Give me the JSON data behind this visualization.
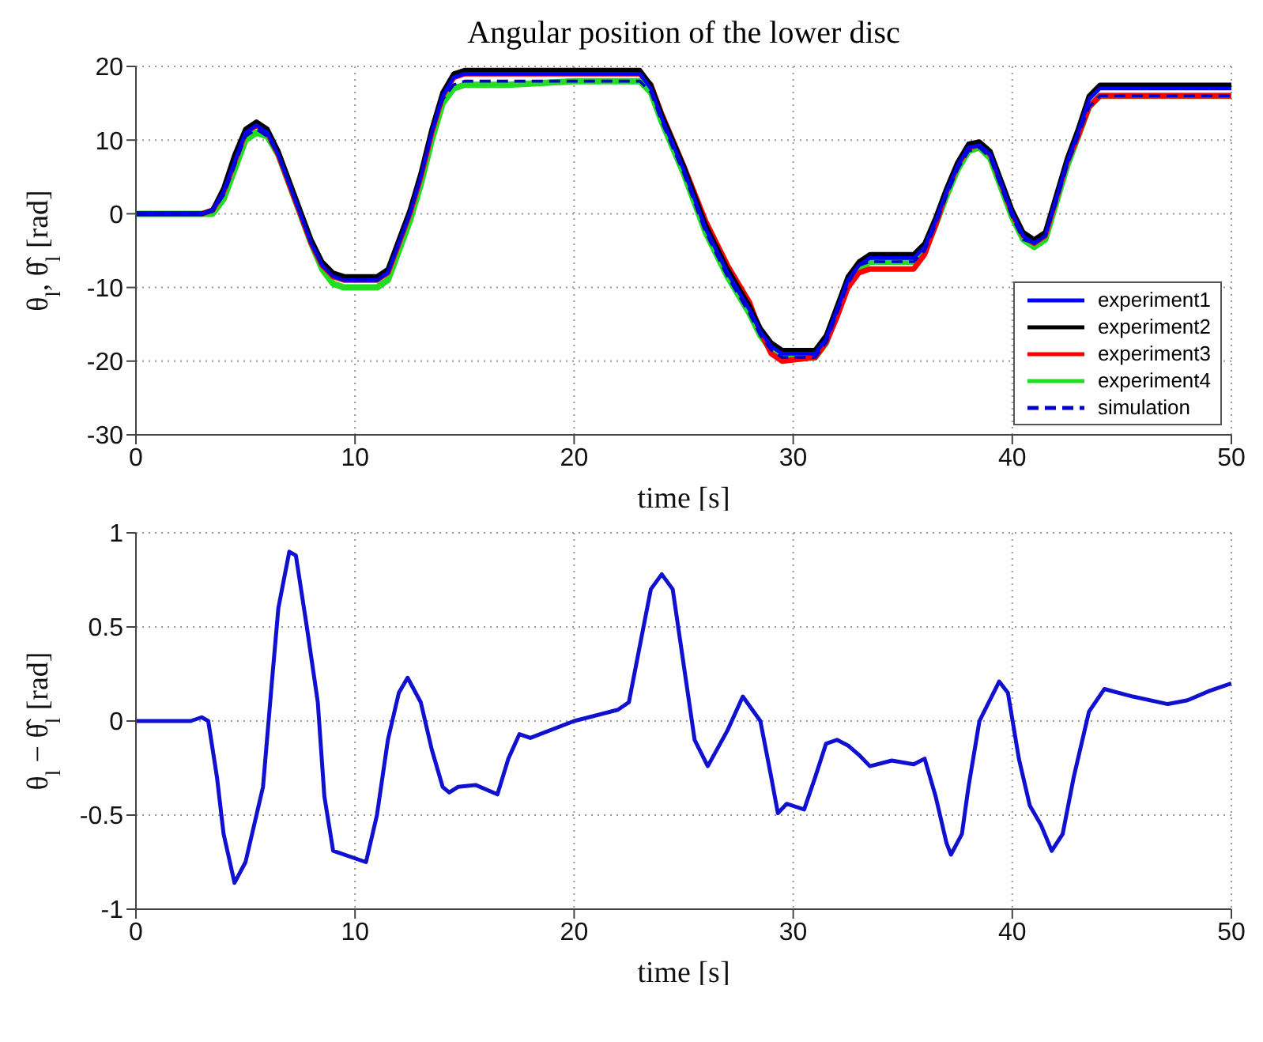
{
  "chart_data": [
    {
      "type": "line",
      "title": "Angular position of the lower disc",
      "xlabel": "time [s]",
      "ylabel": "θ$_{l}$, θ̂$_{l}$ [rad]",
      "x": [
        0,
        3,
        3.5,
        4,
        4.5,
        5,
        5.5,
        6,
        6.5,
        7,
        7.5,
        8,
        8.5,
        9,
        9.5,
        10,
        11,
        11.5,
        12,
        12.5,
        13,
        13.5,
        14,
        14.5,
        15,
        17,
        20,
        23,
        23.5,
        24,
        24.5,
        25,
        26,
        27,
        28,
        28.5,
        29,
        29.5,
        31,
        31.5,
        32,
        32.5,
        33,
        33.5,
        35.5,
        36,
        36.5,
        37,
        37.5,
        38,
        38.5,
        39,
        39.5,
        40,
        40.5,
        41,
        41.5,
        42,
        42.5,
        43,
        43.5,
        44,
        50
      ],
      "series": [
        {
          "name": "experiment1",
          "color": "#0000ff",
          "values": [
            0,
            0,
            0.5,
            3,
            7,
            11,
            12,
            11,
            8,
            4,
            0,
            -4,
            -7,
            -8.5,
            -9,
            -9,
            -9,
            -8,
            -4,
            0,
            5,
            11,
            16,
            18.5,
            19,
            19,
            19,
            19,
            17,
            13,
            9.5,
            6,
            -2,
            -8,
            -13,
            -16,
            -18,
            -19,
            -19,
            -17,
            -13,
            -9,
            -7,
            -6,
            -6,
            -4.5,
            -1,
            3,
            6.5,
            9,
            9.3,
            8,
            4,
            0,
            -3,
            -4,
            -3,
            2,
            7,
            11,
            15.5,
            17,
            17
          ]
        },
        {
          "name": "experiment2",
          "color": "#000000",
          "values": [
            0,
            0,
            0.5,
            3.5,
            8,
            11.5,
            12.5,
            11.5,
            8.5,
            4.5,
            0.5,
            -3.5,
            -6.5,
            -8,
            -8.5,
            -8.5,
            -8.5,
            -7.5,
            -3.5,
            0.5,
            5.5,
            11.5,
            16.5,
            19,
            19.5,
            19.5,
            19.5,
            19.5,
            17.5,
            13.5,
            10,
            6.5,
            -1.5,
            -7.5,
            -12.5,
            -15.5,
            -17.5,
            -18.5,
            -18.5,
            -16.5,
            -12.5,
            -8.5,
            -6.5,
            -5.5,
            -5.5,
            -4,
            -0.5,
            3.5,
            7,
            9.5,
            9.8,
            8.5,
            4.5,
            0.5,
            -2.5,
            -3.5,
            -2.5,
            2.5,
            7.5,
            11.5,
            16,
            17.5,
            17.5
          ]
        },
        {
          "name": "experiment3",
          "color": "#ff0000",
          "values": [
            0,
            0,
            0.5,
            3,
            7,
            11,
            12,
            11,
            8,
            4,
            0,
            -4,
            -7,
            -8.5,
            -9,
            -9,
            -9,
            -8,
            -4,
            0,
            5,
            11,
            16,
            18.5,
            19,
            19,
            19,
            19,
            17.5,
            13.5,
            10,
            6.5,
            -1,
            -7,
            -12,
            -16,
            -19,
            -20,
            -19.5,
            -17.5,
            -14,
            -10,
            -8,
            -7.5,
            -7.5,
            -5.5,
            -1.5,
            3,
            6.5,
            9,
            9.3,
            8,
            4,
            0,
            -3,
            -4,
            -3,
            2,
            7,
            10.5,
            14.5,
            16,
            16
          ]
        },
        {
          "name": "experiment4",
          "color": "#22dd22",
          "values": [
            0,
            0,
            0,
            2,
            6,
            10,
            11,
            10.5,
            8,
            4,
            0,
            -4,
            -7.5,
            -9.5,
            -10,
            -10,
            -10,
            -9,
            -5,
            -1,
            4,
            10,
            15,
            17,
            17.5,
            17.5,
            18,
            18,
            16.5,
            12.5,
            9,
            5.5,
            -2.5,
            -8.5,
            -13.5,
            -16.5,
            -18.5,
            -19.5,
            -19.5,
            -17.5,
            -13.5,
            -9.5,
            -7.5,
            -6.5,
            -6.5,
            -5,
            -1.5,
            2.5,
            6,
            8.5,
            9,
            7.5,
            3.5,
            -0.5,
            -3.5,
            -4.5,
            -3.5,
            1.5,
            6.5,
            10.5,
            14.5,
            16,
            16
          ]
        },
        {
          "name": "simulation",
          "color": "#0000cc",
          "line_style": "dashed",
          "values": [
            0,
            0,
            0.3,
            2.5,
            6.5,
            10.5,
            11.5,
            10.5,
            8,
            4,
            0,
            -4,
            -7,
            -8.5,
            -9,
            -9,
            -9,
            -8,
            -4,
            0,
            5,
            11,
            15.5,
            17.5,
            18,
            18,
            18,
            18,
            16.5,
            12.5,
            9,
            5.5,
            -2.5,
            -8.5,
            -13.5,
            -16.5,
            -18.5,
            -19.5,
            -19.5,
            -17.5,
            -13.5,
            -9.5,
            -7,
            -6.5,
            -6.5,
            -5,
            -1.5,
            2.5,
            6,
            8.5,
            9,
            7.5,
            3.5,
            -0.5,
            -3.5,
            -4,
            -3,
            1.5,
            6.5,
            10.5,
            14.5,
            16,
            16
          ]
        }
      ],
      "xlim": [
        0,
        50
      ],
      "xticks": [
        0,
        10,
        20,
        30,
        40,
        50
      ],
      "ylim": [
        -30,
        20
      ],
      "yticks": [
        -30,
        -20,
        -10,
        0,
        10,
        20
      ],
      "grid": true,
      "legend": "bottom right",
      "marker": "none"
    },
    {
      "type": "line",
      "xlabel": "time [s]",
      "ylabel": "θ$_{l}$ − θ̂$_{l}$ [rad]",
      "x": [
        0,
        2.5,
        3,
        3.3,
        3.7,
        4,
        4.5,
        5,
        5.5,
        5.8,
        6.2,
        6.5,
        7,
        7.3,
        7.8,
        8.3,
        8.6,
        9,
        10.5,
        11,
        11.5,
        12,
        12.4,
        13,
        13.5,
        14,
        14.3,
        14.7,
        15.5,
        16.5,
        17,
        17.5,
        18,
        20,
        22,
        22.5,
        23,
        23.5,
        24,
        24.5,
        25,
        25.5,
        26.1,
        27,
        27.7,
        28.5,
        29,
        29.3,
        29.7,
        30.5,
        31,
        31.5,
        32,
        32.5,
        33,
        33.5,
        34.5,
        35.5,
        36,
        36.5,
        37,
        37.2,
        37.7,
        38,
        38.5,
        39.4,
        39.8,
        40.3,
        40.8,
        41.3,
        41.8,
        42.3,
        42.8,
        43.5,
        44.2,
        45.5,
        47.1,
        48,
        49,
        50
      ],
      "series": [
        {
          "color": "#1010d0",
          "values": [
            0,
            0,
            0.02,
            0,
            -0.3,
            -0.6,
            -0.86,
            -0.75,
            -0.5,
            -0.35,
            0.2,
            0.6,
            0.9,
            0.88,
            0.5,
            0.1,
            -0.4,
            -0.69,
            -0.75,
            -0.5,
            -0.1,
            0.15,
            0.23,
            0.1,
            -0.15,
            -0.35,
            -0.38,
            -0.35,
            -0.34,
            -0.39,
            -0.2,
            -0.07,
            -0.09,
            0,
            0.06,
            0.1,
            0.4,
            0.7,
            0.78,
            0.7,
            0.3,
            -0.1,
            -0.24,
            -0.05,
            0.13,
            0,
            -0.3,
            -0.49,
            -0.44,
            -0.47,
            -0.3,
            -0.12,
            -0.1,
            -0.13,
            -0.18,
            -0.24,
            -0.21,
            -0.23,
            -0.2,
            -0.4,
            -0.65,
            -0.71,
            -0.6,
            -0.35,
            0,
            0.21,
            0.15,
            -0.2,
            -0.45,
            -0.55,
            -0.69,
            -0.6,
            -0.3,
            0.05,
            0.17,
            0.13,
            0.09,
            0.11,
            0.16,
            0.2
          ]
        }
      ],
      "xlim": [
        0,
        50
      ],
      "xticks": [
        0,
        10,
        20,
        30,
        40,
        50
      ],
      "ylim": [
        -1,
        1
      ],
      "yticks": [
        -1,
        -0.5,
        0,
        0.5,
        1
      ],
      "grid": true,
      "marker": "none"
    }
  ]
}
